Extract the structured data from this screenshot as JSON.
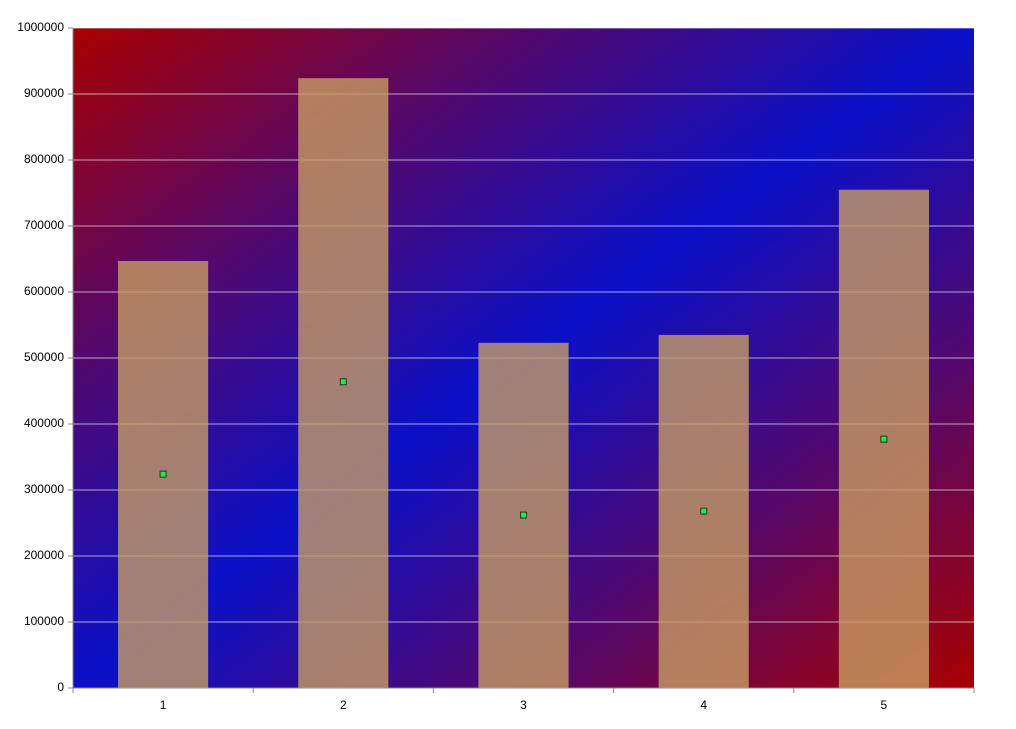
{
  "chart_data": {
    "type": "bar",
    "categories": [
      "1",
      "2",
      "3",
      "4",
      "5"
    ],
    "series": [
      {
        "color": "#c9a064",
        "values": [
          647000,
          924000,
          523000,
          535000,
          755000
        ]
      },
      {
        "type": "marker",
        "color": "#33dd55",
        "values": [
          324000,
          464000,
          262000,
          268000,
          377000
        ]
      }
    ],
    "ylim": [
      0,
      1000000
    ],
    "yticks": [
      0,
      100000,
      200000,
      300000,
      400000,
      500000,
      600000,
      700000,
      800000,
      900000,
      1000000
    ],
    "grid": true
  }
}
